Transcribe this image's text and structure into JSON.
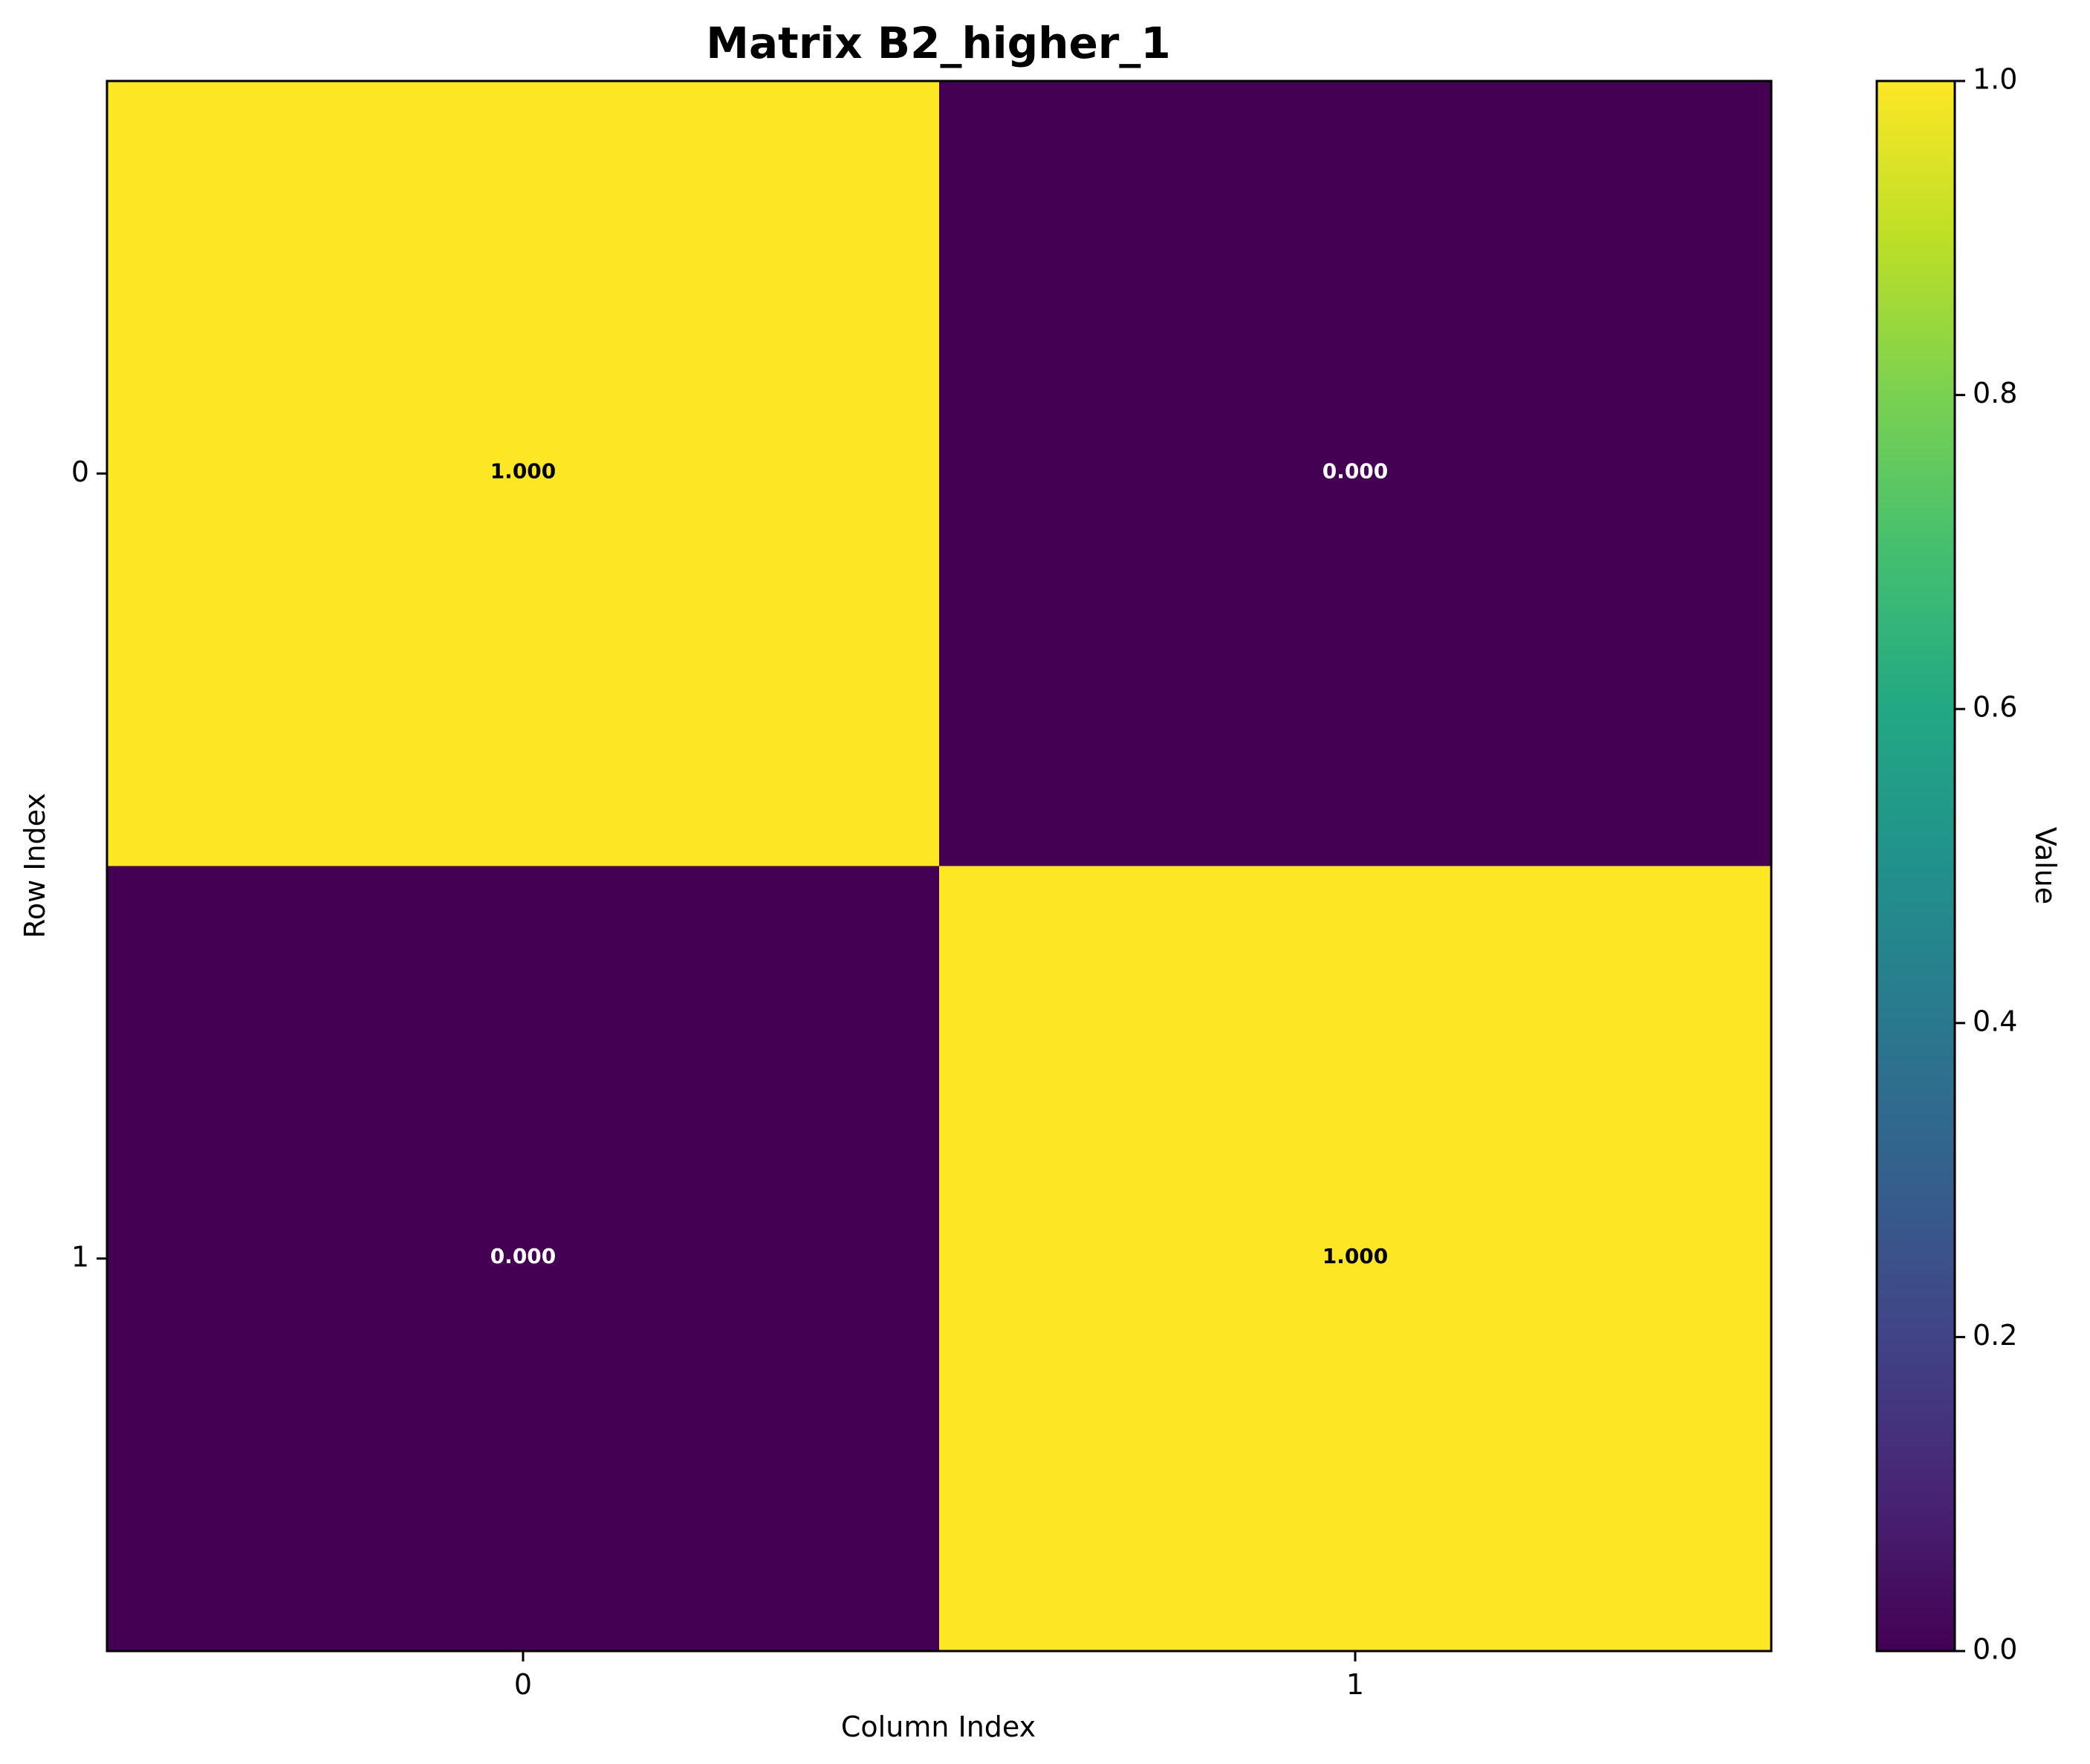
{
  "chart_data": {
    "type": "heatmap",
    "title": "Matrix B2_higher_1",
    "xlabel": "Column Index",
    "ylabel": "Row Index",
    "x_categories": [
      "0",
      "1"
    ],
    "y_categories": [
      "0",
      "1"
    ],
    "values": [
      [
        1.0,
        0.0
      ],
      [
        0.0,
        1.0
      ]
    ],
    "value_labels": [
      [
        "1.000",
        "0.000"
      ],
      [
        "0.000",
        "1.000"
      ]
    ],
    "colormap": "viridis",
    "vmin": 0.0,
    "vmax": 1.0,
    "colorbar": {
      "label": "Value",
      "ticks": [
        0.0,
        0.2,
        0.4,
        0.6,
        0.8,
        1.0
      ],
      "tick_labels": [
        "0.0",
        "0.2",
        "0.4",
        "0.6",
        "0.8",
        "1.0"
      ]
    },
    "grid": false
  }
}
